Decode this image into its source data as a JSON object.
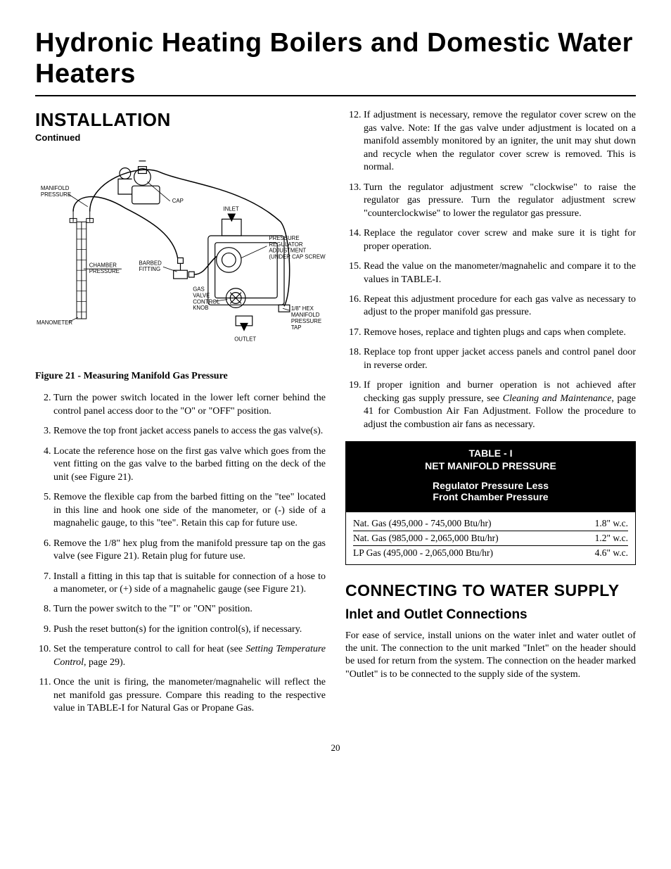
{
  "title": "Hydronic Heating Boilers and Domestic Water Heaters",
  "left": {
    "section": "INSTALLATION",
    "continued": "Continued",
    "figure_caption": "Figure 21 - Measuring Manifold Gas Pressure",
    "labels": {
      "manifold_pressure": "MANIFOLD\nPRESSURE",
      "cap": "CAP",
      "inlet": "INLET",
      "pressure_regulator": "PRESSURE\nREGULATOR\nADJUSTMENT\n(UNDER CAP SCREW)",
      "chamber_pressure": "CHAMBER\nPRESSURE",
      "barbed_fitting": "BARBED\nFITTING",
      "manometer": "MANOMETER",
      "gas_valve": "GAS\nVALVE\nCONTROL\nKNOB",
      "hex_tap": "1/8\" HEX\nMANIFOLD\nPRESSURE\nTAP",
      "outlet": "OUTLET"
    },
    "steps_start": 2,
    "steps": [
      "Turn the power switch located in the lower left corner behind the control panel access door to the \"O\" or \"OFF\" position.",
      "Remove the top front jacket access panels to access the gas valve(s).",
      "Locate the reference hose on the first gas valve which goes from the vent fitting on the gas valve to the barbed fitting on the deck of the unit (see Figure 21).",
      "Remove the flexible cap from the barbed fitting on the \"tee\" located in this line and hook one side of the manometer, or (-) side of a magnahelic gauge, to this \"tee\". Retain this cap for future use.",
      "Remove the 1/8\" hex plug from the manifold pressure tap on the gas valve (see Figure 21). Retain plug for future use.",
      "Install a fitting in this tap that is suitable for connection of a hose to a manometer, or (+) side of a magnahelic gauge (see Figure 21).",
      "Turn the power switch to the \"I\" or \"ON\" position.",
      "Push the reset button(s) for the ignition control(s), if necessary.",
      "Set the temperature control to call for heat (see <i>Setting Temperature Control</i>, page 29).",
      "Once the unit is firing, the manometer/magnahelic will reflect the net manifold gas pressure. Compare this reading to the respective value in TABLE-I for Natural Gas or Propane Gas."
    ]
  },
  "right": {
    "steps_start": 12,
    "steps": [
      "If adjustment is necessary, remove the regulator cover screw on the gas valve. Note: If the gas valve under adjustment is located on a manifold assembly monitored by an igniter, the unit may shut down and recycle when the regulator cover screw is removed. This is normal.",
      "Turn the regulator adjustment screw \"clockwise\" to raise the regulator gas pressure. Turn the regulator adjustment screw \"counterclockwise\" to lower the regulator gas pressure.",
      "Replace the regulator cover screw and make sure it is tight for proper operation.",
      "Read the value on the manometer/magnahelic and compare it to the values in TABLE-I.",
      "Repeat this adjustment procedure for each gas valve as necessary to adjust to the proper manifold gas pressure.",
      "Remove hoses, replace and tighten plugs and caps when complete.",
      "Replace top front upper jacket access panels and control panel door in reverse order.",
      "If proper ignition and burner operation is not achieved after checking gas supply pressure, see <i>Cleaning and Maintenance</i>, page 41 for Combustion Air Fan Adjustment. Follow the procedure to adjust the combustion air fans as necessary."
    ],
    "table": {
      "title1": "TABLE - I",
      "title2": "NET MANIFOLD PRESSURE",
      "subtitle": "Regulator Pressure Less\nFront Chamber Pressure",
      "rows": [
        {
          "label": "Nat. Gas (495,000 - 745,000 Btu/hr)",
          "value": "1.8\" w.c."
        },
        {
          "label": "Nat. Gas (985,000 - 2,065,000 Btu/hr)",
          "value": "1.2\" w.c."
        },
        {
          "label": "LP Gas (495,000 - 2,065,000 Btu/hr)",
          "value": "4.6\" w.c."
        }
      ]
    },
    "section2": "CONNECTING TO WATER SUPPLY",
    "sub": "Inlet and Outlet Connections",
    "body": "For ease of service, install unions on the water inlet and water outlet of the unit. The connection to the unit marked \"Inlet\" on the header should be used for return from the system. The connection on the header marked \"Outlet\" is to be connected to the supply side of the system."
  },
  "pagenum": "20"
}
